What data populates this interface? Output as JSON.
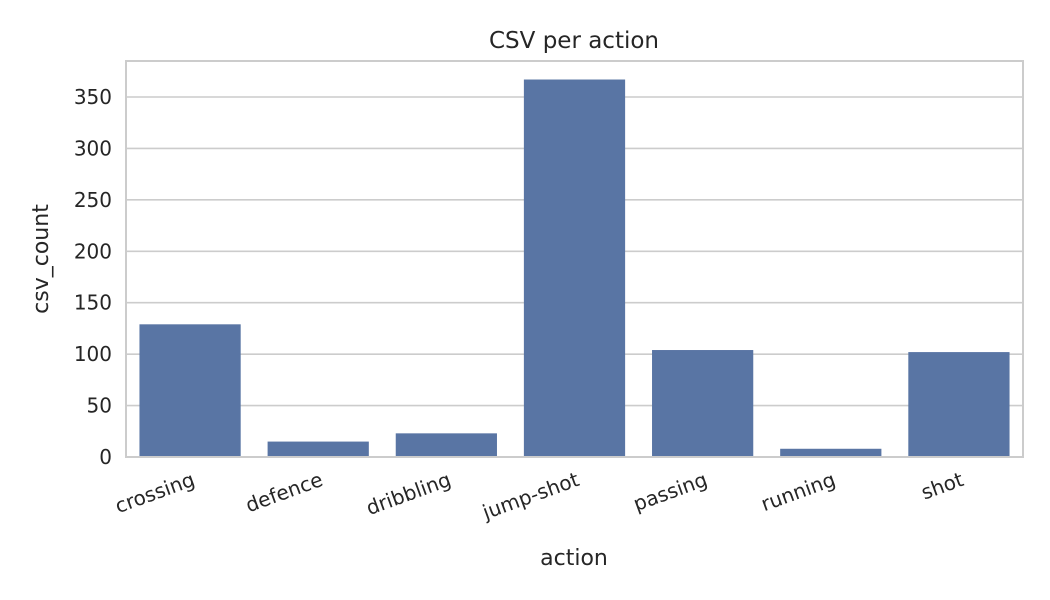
{
  "chart_data": {
    "type": "bar",
    "title": "CSV per action",
    "xlabel": "action",
    "ylabel": "csv_count",
    "categories": [
      "crossing",
      "defence",
      "dribbling",
      "jump-shot",
      "passing",
      "running",
      "shot"
    ],
    "values": [
      129,
      15,
      23,
      367,
      104,
      8,
      102
    ],
    "ylim": [
      0,
      385
    ],
    "yticks": [
      0,
      50,
      100,
      150,
      200,
      250,
      300,
      350
    ],
    "grid": "y",
    "legend": "none",
    "bar_color": "#5975a4",
    "x_tick_rotation": -20
  }
}
